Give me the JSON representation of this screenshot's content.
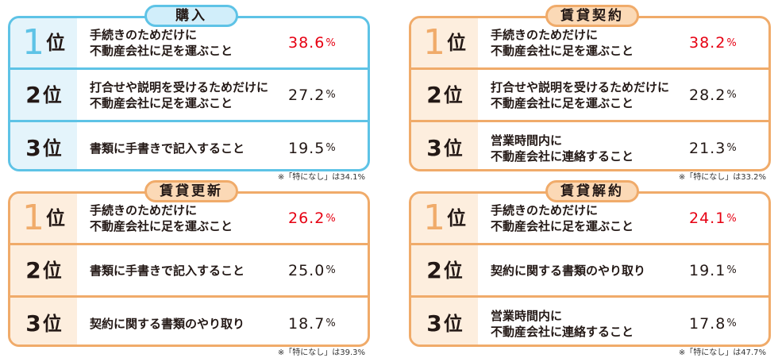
{
  "rank_suffix": "位",
  "percent_sign": "%",
  "colors": {
    "blue": "#5ec3e6",
    "orange": "#f0ab6a",
    "highlight": "#e60012"
  },
  "panels": [
    {
      "title": "購入",
      "note": "※「特になし」は34.1%",
      "rows": [
        {
          "rank": "1",
          "text": "手続きのためだけに\n不動産会社に足を運ぶこと",
          "value": "38.6"
        },
        {
          "rank": "2",
          "text": "打合せや説明を受けるためだけに\n不動産会社に足を運ぶこと",
          "value": "27.2"
        },
        {
          "rank": "3",
          "text": "書類に手書きで記入すること",
          "value": "19.5"
        }
      ]
    },
    {
      "title": "賃貸契約",
      "note": "※「特になし」は33.2%",
      "rows": [
        {
          "rank": "1",
          "text": "手続きのためだけに\n不動産会社に足を運ぶこと",
          "value": "38.2"
        },
        {
          "rank": "2",
          "text": "打合せや説明を受けるためだけに\n不動産会社に足を運ぶこと",
          "value": "28.2"
        },
        {
          "rank": "3",
          "text": "営業時間内に\n不動産会社に連絡すること",
          "value": "21.3"
        }
      ]
    },
    {
      "title": "賃貸更新",
      "note": "※「特になし」は39.3%",
      "rows": [
        {
          "rank": "1",
          "text": "手続きのためだけに\n不動産会社に足を運ぶこと",
          "value": "26.2"
        },
        {
          "rank": "2",
          "text": "書類に手書きで記入すること",
          "value": "25.0"
        },
        {
          "rank": "3",
          "text": "契約に関する書類のやり取り",
          "value": "18.7"
        }
      ]
    },
    {
      "title": "賃貸解約",
      "note": "※「特になし」は47.7%",
      "rows": [
        {
          "rank": "1",
          "text": "手続きのためだけに\n不動産会社に足を運ぶこと",
          "value": "24.1"
        },
        {
          "rank": "2",
          "text": "契約に関する書類のやり取り",
          "value": "19.1"
        },
        {
          "rank": "3",
          "text": "営業時間内に\n不動産会社に連絡すること",
          "value": "17.8"
        }
      ]
    }
  ]
}
